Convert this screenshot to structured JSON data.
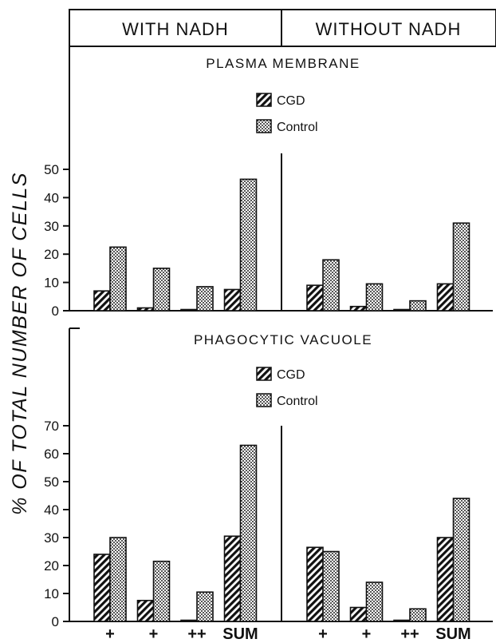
{
  "ylabel": "% OF TOTAL NUMBER OF CELLS",
  "conditions": [
    "WITH NADH",
    "WITHOUT NADH"
  ],
  "colors": {
    "ink": "#111111",
    "background": "#ffffff"
  },
  "chart_data": [
    {
      "type": "bar",
      "title": "PLASMA MEMBRANE",
      "categories": [
        "+",
        "+",
        "++",
        "SUM"
      ],
      "ylim": [
        0,
        50
      ],
      "yticks": [
        0,
        10,
        20,
        30,
        40,
        50
      ],
      "legend": "top-center",
      "groups": [
        {
          "condition": "WITH NADH",
          "series": [
            {
              "name": "CGD",
              "fill": "hatched",
              "values": [
                7,
                1,
                0.3,
                7.5
              ]
            },
            {
              "name": "Control",
              "fill": "stippled",
              "values": [
                22.5,
                15,
                8.5,
                46.5
              ]
            }
          ]
        },
        {
          "condition": "WITHOUT NADH",
          "series": [
            {
              "name": "CGD",
              "fill": "hatched",
              "values": [
                9,
                1.5,
                0.3,
                9.5
              ]
            },
            {
              "name": "Control",
              "fill": "stippled",
              "values": [
                18,
                9.5,
                3.5,
                31
              ]
            }
          ]
        }
      ]
    },
    {
      "type": "bar",
      "title": "PHAGOCYTIC VACUOLE",
      "categories": [
        "+",
        "+",
        "++",
        "SUM"
      ],
      "ylim": [
        0,
        70
      ],
      "yticks": [
        0,
        10,
        20,
        30,
        40,
        50,
        60,
        70
      ],
      "legend": "top-center",
      "groups": [
        {
          "condition": "WITH NADH",
          "series": [
            {
              "name": "CGD",
              "fill": "hatched",
              "values": [
                24,
                7.5,
                0.3,
                30.5
              ]
            },
            {
              "name": "Control",
              "fill": "stippled",
              "values": [
                30,
                21.5,
                10.5,
                63
              ]
            }
          ]
        },
        {
          "condition": "WITHOUT NADH",
          "series": [
            {
              "name": "CGD",
              "fill": "hatched",
              "values": [
                26.5,
                5,
                0.3,
                30
              ]
            },
            {
              "name": "Control",
              "fill": "stippled",
              "values": [
                25,
                14,
                4.5,
                44
              ]
            }
          ]
        }
      ]
    }
  ]
}
